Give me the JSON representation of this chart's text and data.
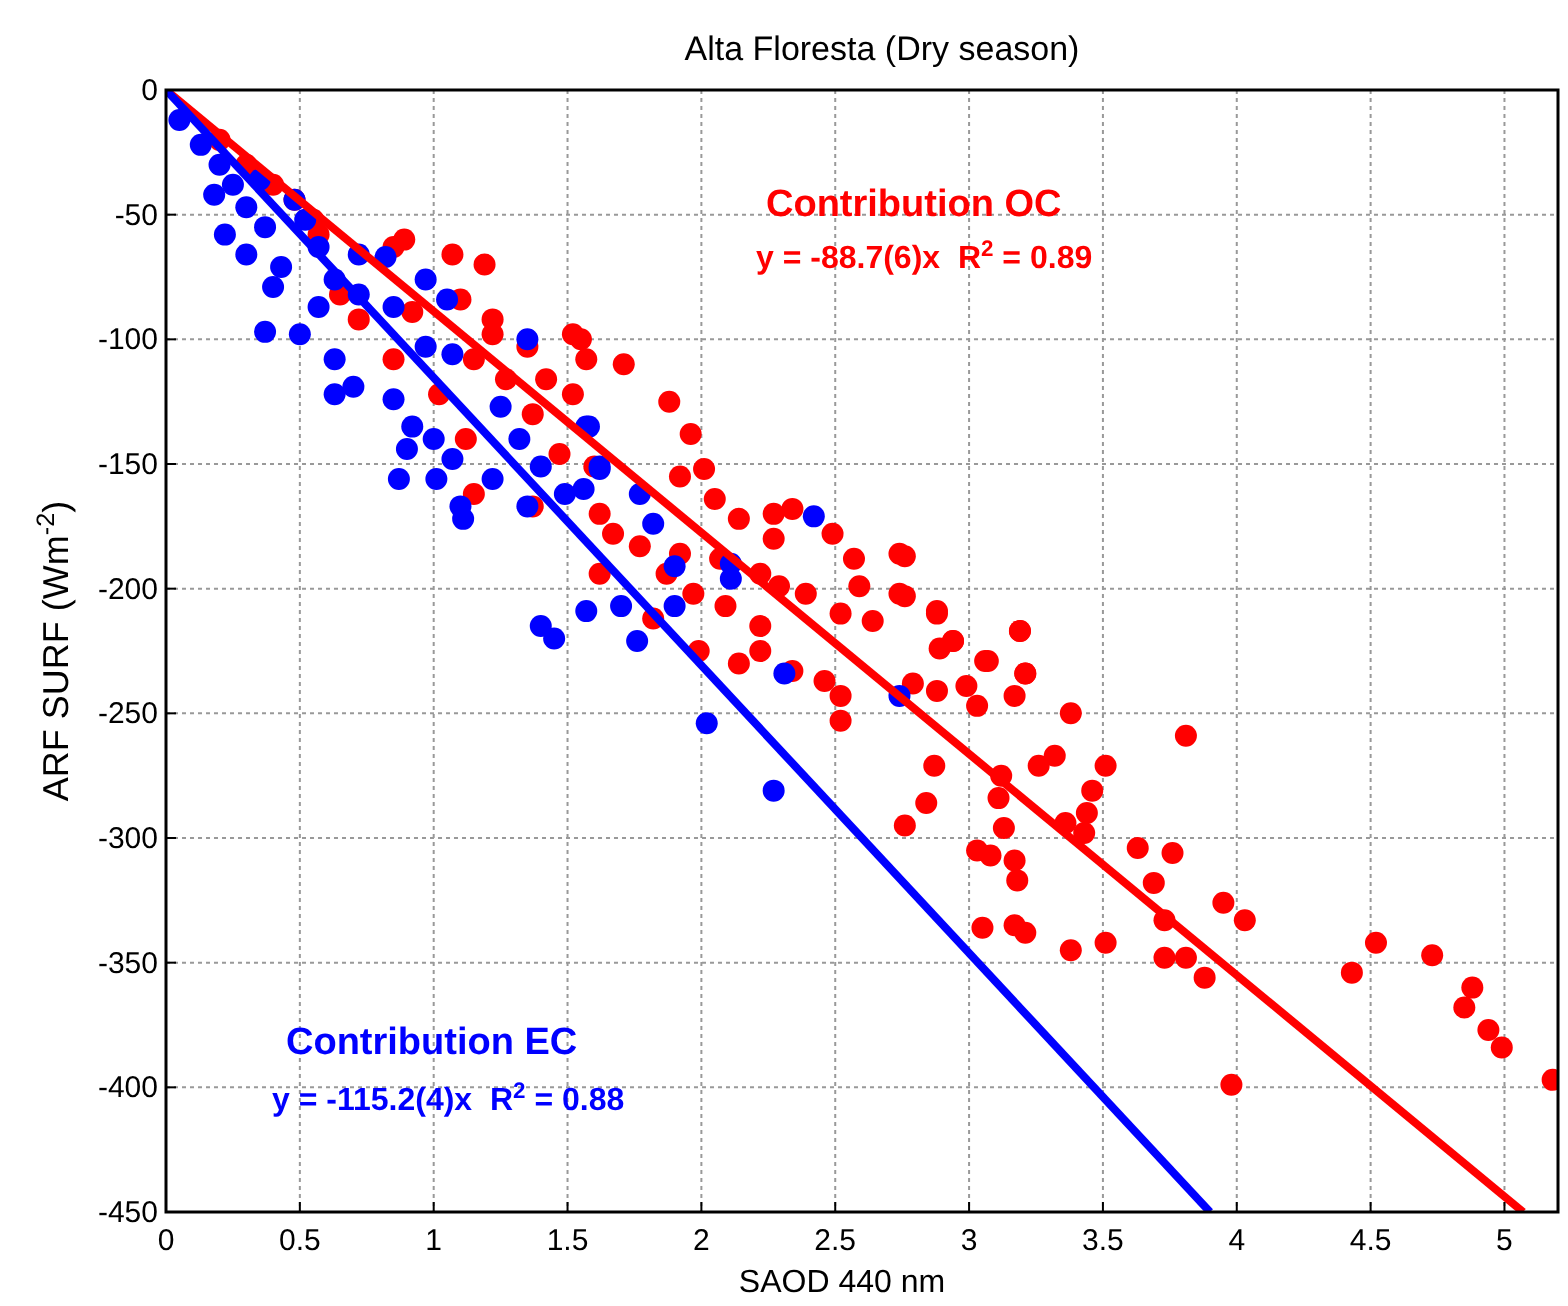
{
  "chart_data": {
    "type": "scatter",
    "title": "Alta Floresta (Dry season)",
    "xlabel": "SAOD 440 nm",
    "ylabel": "ARF SURF   (Wm$^{-2}$)",
    "xlim": [
      0,
      5.2
    ],
    "ylim": [
      -450,
      0
    ],
    "xticks": [
      0,
      0.5,
      1,
      1.5,
      2,
      2.5,
      3,
      3.5,
      4,
      4.5,
      5
    ],
    "yticks": [
      -450,
      -400,
      -350,
      -300,
      -250,
      -200,
      -150,
      -100,
      -50,
      0
    ],
    "grid": true,
    "marker": "circle",
    "annotations": [
      "y = -88.7(6)x  R$^{2}$ = 0.89",
      "y = -115.2(4)x  R$^{2}$ = 0.88"
    ],
    "series": [
      {
        "name": "Contribution OC",
        "color": "#ff0000",
        "x": [
          2.76,
          2.76,
          2.88,
          2.94,
          2.89,
          3.19,
          3.21,
          3.17,
          3.07,
          3.03,
          3.38,
          3.81,
          2.79,
          2.88,
          2.99,
          2.87,
          3.26,
          3.32,
          3.51,
          3.12,
          3.46,
          2.84,
          2.76,
          3.11,
          3.13,
          3.36,
          3.44,
          3.43,
          3.03,
          3.08,
          3.17,
          3.18,
          3.63,
          3.76,
          3.69,
          3.73,
          3.95,
          4.03,
          3.05,
          3.17,
          3.21,
          3.38,
          3.51,
          3.73,
          3.81,
          3.88,
          3.98,
          4.43,
          4.52,
          4.73,
          4.88,
          4.85,
          4.94,
          4.99,
          5.18,
          1.55,
          1.71,
          1.88,
          1.96,
          2.01,
          1.92,
          2.05,
          2.14,
          2.27,
          2.34,
          2.49,
          2.74,
          2.57,
          2.27,
          2.22,
          2.29,
          2.39,
          2.59,
          2.74,
          2.52,
          2.64,
          2.09,
          2.22,
          1.97,
          1.87,
          1.77,
          1.67,
          2.07,
          2.88,
          2.94,
          3.06,
          3.19,
          3.21,
          2.14,
          2.34,
          2.46,
          2.52,
          2.22,
          2.52,
          1.99,
          1.82,
          1.62,
          1.92,
          0.89,
          1.07,
          1.19,
          0.92,
          1.1,
          1.22,
          1.35,
          1.52,
          1.57,
          1.15,
          1.27,
          1.42,
          0.65,
          0.72,
          0.85,
          1.02,
          1.37,
          1.52,
          1.12,
          1.47,
          1.6,
          1.15,
          1.37,
          1.62,
          0.85,
          1.22,
          0.48,
          0.57,
          0.2,
          0.3,
          0.4,
          0.55
        ],
        "values": [
          -187,
          -203,
          -210,
          -221,
          -224,
          -217,
          -234,
          -243,
          -229,
          -247,
          -250,
          -259,
          -238,
          -241,
          -239,
          -271,
          -271,
          -267,
          -271,
          -275,
          -281,
          -286,
          -295,
          -284,
          -296,
          -294,
          -290,
          -298,
          -305,
          -307,
          -309,
          -317,
          -304,
          -306,
          -318,
          -333,
          -326,
          -333,
          -336,
          -335,
          -338,
          -345,
          -342,
          -348,
          -348,
          -356,
          -399,
          -354,
          -342,
          -347,
          -360,
          -368,
          -377,
          -384,
          -397,
          -100,
          -110,
          -125,
          -138,
          -152,
          -155,
          -164,
          -172,
          -170,
          -168,
          -178,
          -186,
          -188,
          -180,
          -194,
          -199,
          -202,
          -199,
          -202,
          -210,
          -213,
          -207,
          -215,
          -202,
          -194,
          -183,
          -178,
          -188,
          -209,
          -221,
          -229,
          -217,
          -234,
          -230,
          -233,
          -237,
          -253,
          -225,
          -243,
          -225,
          -212,
          -194,
          -186,
          -60,
          -66,
          -70,
          -89,
          -84,
          -92,
          -103,
          -98,
          -108,
          -108,
          -116,
          -116,
          -82,
          -92,
          -108,
          -122,
          -130,
          -122,
          -140,
          -146,
          -151,
          -162,
          -167,
          -170,
          -63,
          -98,
          -44,
          -58,
          -20,
          -30,
          -38,
          -52
        ]
      },
      {
        "name": "Contribution EC",
        "color": "#0000ff",
        "x": [
          0.05,
          0.13,
          0.2,
          0.25,
          0.18,
          0.3,
          0.35,
          0.22,
          0.3,
          0.37,
          0.48,
          0.52,
          0.43,
          0.4,
          0.37,
          0.57,
          0.72,
          0.82,
          0.63,
          0.72,
          0.5,
          0.57,
          0.63,
          0.7,
          0.63,
          0.85,
          0.97,
          1.05,
          0.97,
          1.07,
          0.85,
          0.92,
          1,
          0.9,
          0.87,
          1.01,
          1.07,
          1.1,
          1.11,
          1.22,
          1.25,
          1.32,
          1.35,
          1.4,
          1.49,
          1.57,
          1.62,
          1.35,
          1.58,
          1.62,
          1.56,
          1.77,
          1.82,
          1.9,
          2.11,
          2.11,
          1.57,
          1.7,
          1.76,
          1.9,
          2.42,
          2.31,
          2.74,
          2.02,
          2.27,
          1.4,
          1.45
        ],
        "values": [
          -12,
          -22,
          -30,
          -38,
          -42,
          -47,
          -36,
          -58,
          -66,
          -55,
          -44,
          -52,
          -71,
          -79,
          -97,
          -63,
          -66,
          -67,
          -76,
          -82,
          -98,
          -87,
          -108,
          -119,
          -122,
          -87,
          -76,
          -84,
          -103,
          -106,
          -124,
          -135,
          -140,
          -144,
          -156,
          -156,
          -148,
          -167,
          -172,
          -156,
          -127,
          -140,
          -100,
          -151,
          -162,
          -135,
          -151,
          -167,
          -135,
          -152,
          -160,
          -162,
          -174,
          -191,
          -190,
          -196,
          -209,
          -207,
          -221,
          -207,
          -171,
          -234,
          -243,
          -254,
          -281,
          -215,
          -220
        ]
      },
      {
        "type": "line",
        "marker": "none",
        "color": "#ff0000",
        "x": [
          0,
          5.07
        ],
        "values": [
          0,
          -450
        ]
      },
      {
        "type": "line",
        "marker": "none",
        "color": "#0000ff",
        "x": [
          0,
          3.9
        ],
        "values": [
          0,
          -450
        ]
      }
    ]
  }
}
